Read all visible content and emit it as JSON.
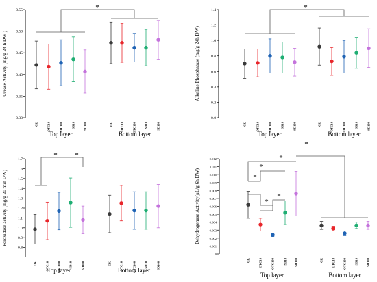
{
  "colors": {
    "CK": "#3a3a3a",
    "OTC10": "#e8262b",
    "OTC100": "#1f63b4",
    "SD10": "#1fae73",
    "SD100": "#c473dc",
    "axis": "#000000",
    "bracket": "#5a5a5a"
  },
  "chart_data": [
    {
      "type": "scatter",
      "title": "",
      "ylabel": "Urease Activity (mg/g 24 h DW )",
      "ylim": [
        0.3,
        0.55
      ],
      "yticks": [
        0.3,
        0.35,
        0.4,
        0.45,
        0.5,
        0.55
      ],
      "ytick_labels": [
        "0.30",
        "0.35",
        "0.40",
        "0.45",
        "0.50",
        "0.55"
      ],
      "categories": [
        "CK",
        "OTC10",
        "OTC100",
        "SD10",
        "SD100"
      ],
      "groups": [
        "Top layer",
        "Bottom layer"
      ],
      "series": [
        {
          "group": "Top layer",
          "values": [
            0.422,
            0.418,
            0.427,
            0.435,
            0.407
          ],
          "err": [
            0.055,
            0.052,
            0.053,
            0.052,
            0.05
          ]
        },
        {
          "group": "Bottom layer",
          "values": [
            0.473,
            0.473,
            0.462,
            0.462,
            0.48
          ],
          "err": [
            0.048,
            0.045,
            0.033,
            0.042,
            0.045
          ]
        }
      ],
      "significance": [
        "*"
      ]
    },
    {
      "type": "scatter",
      "title": "",
      "ylabel": "Alkaline Phosphatase (mg/g 24h DW)",
      "ylim": [
        0,
        1.4
      ],
      "yticks": [
        0.0,
        0.2,
        0.4,
        0.6,
        0.8,
        1.0,
        1.2,
        1.4
      ],
      "ytick_labels": [
        "0.0",
        "0.2",
        "0.4",
        "0.6",
        "0.8",
        "1.0",
        "1.2",
        "1.4"
      ],
      "categories": [
        "CK",
        "OTC10",
        "OTC100",
        "SD10",
        "SD100"
      ],
      "groups": [
        "Top layer",
        "Bottom layer"
      ],
      "series": [
        {
          "group": "Top layer",
          "values": [
            0.7,
            0.71,
            0.8,
            0.78,
            0.72
          ],
          "err": [
            0.19,
            0.18,
            0.22,
            0.2,
            0.18
          ]
        },
        {
          "group": "Bottom layer",
          "values": [
            0.92,
            0.73,
            0.79,
            0.84,
            0.9
          ],
          "err": [
            0.24,
            0.18,
            0.21,
            0.2,
            0.25
          ]
        }
      ],
      "significance": [
        "*"
      ]
    },
    {
      "type": "scatter",
      "title": "",
      "ylabel": "Peroxidase activity (mg/g 20 min DW)",
      "ylim": [
        0.7,
        1.7
      ],
      "yticks": [
        0.8,
        0.9,
        1.0,
        1.1,
        1.2,
        1.3,
        1.4,
        1.5,
        1.6,
        1.7
      ],
      "ytick_labels": [
        "0.8",
        "0.9",
        "1.0",
        "1.1",
        "1.2",
        "1.3",
        "1.4",
        "1.5",
        "1.6",
        "1.7"
      ],
      "categories": [
        "CK",
        "OTC10",
        "OTC100",
        "SD10",
        "SD100"
      ],
      "groups": [
        "Top layer",
        "Bottom layer"
      ],
      "series": [
        {
          "group": "Top layer",
          "values": [
            0.985,
            1.07,
            1.17,
            1.255,
            1.08
          ],
          "err": [
            0.15,
            0.19,
            0.19,
            0.25,
            0.14
          ]
        },
        {
          "group": "Bottom layer",
          "values": [
            1.14,
            1.25,
            1.175,
            1.175,
            1.22
          ],
          "err": [
            0.19,
            0.18,
            0.19,
            0.19,
            0.22
          ]
        }
      ],
      "significance": [
        "*",
        "*"
      ]
    },
    {
      "type": "scatter",
      "title": "",
      "ylabel": "Dehydrogenase Activity(μL/g 6h DW)",
      "ylim": [
        0,
        0.012
      ],
      "yticks": [
        0,
        0.001,
        0.002,
        0.003,
        0.004,
        0.005,
        0.006,
        0.007,
        0.008,
        0.009,
        0.01,
        0.011,
        0.012
      ],
      "ytick_labels": [
        "0",
        "0.001",
        "0.002",
        "0.003",
        "0.004",
        "0.005",
        "0.006",
        "0.007",
        "0.008",
        "0.009",
        "0.010",
        "0.011",
        "0.012"
      ],
      "categories": [
        "CK",
        "OTC10",
        "OTC100",
        "SD10",
        "SD100"
      ],
      "groups": [
        "Top layer",
        "Bottom layer"
      ],
      "series": [
        {
          "group": "Top layer",
          "values": [
            0.0062,
            0.0037,
            0.0024,
            0.0052,
            0.0076
          ],
          "err": [
            0.0017,
            0.0008,
            0.0002,
            0.0015,
            0.0028
          ]
        },
        {
          "group": "Bottom layer",
          "values": [
            0.0036,
            0.0032,
            0.0026,
            0.0036,
            0.0036
          ],
          "err": [
            0.0005,
            0.0003,
            0.0003,
            0.0004,
            0.0005
          ]
        }
      ],
      "significance": [
        "*",
        "*",
        "*",
        "*",
        "*",
        "*"
      ]
    }
  ]
}
